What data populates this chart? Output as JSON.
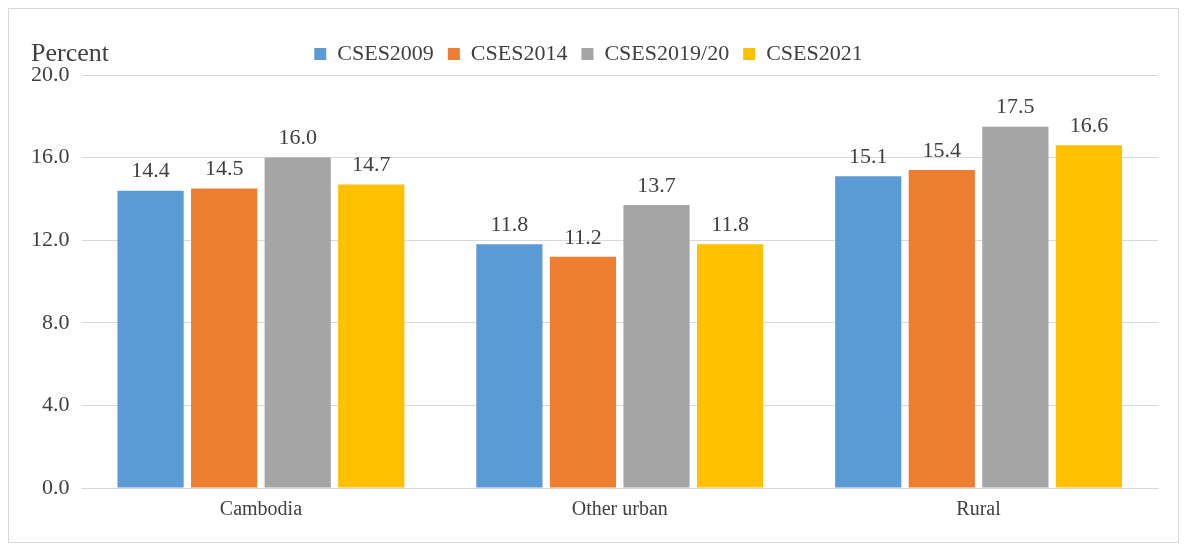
{
  "chart_data": {
    "type": "bar",
    "ylabel": "Percent",
    "categories": [
      "Cambodia",
      "Other urban",
      "Rural"
    ],
    "series": [
      {
        "name": "CSES2009",
        "color": "#5b9bd5",
        "values": [
          14.4,
          11.8,
          15.1
        ],
        "value_labels": [
          "14.4",
          "11.8",
          "15.1"
        ]
      },
      {
        "name": "CSES2014",
        "color": "#ed7d31",
        "values": [
          14.5,
          11.2,
          15.4
        ],
        "value_labels": [
          "14.5",
          "11.2",
          "15.4"
        ]
      },
      {
        "name": "CSES2019/20",
        "color": "#a5a5a5",
        "values": [
          16.0,
          13.7,
          17.5
        ],
        "value_labels": [
          "16.0",
          "13.7",
          "17.5"
        ]
      },
      {
        "name": "CSES2021",
        "color": "#ffc000",
        "values": [
          14.7,
          11.8,
          16.6
        ],
        "value_labels": [
          "14.7",
          "11.8",
          "16.6"
        ]
      }
    ],
    "ylim": [
      0,
      20
    ],
    "yticks": [
      {
        "value": 0,
        "label": "0.0"
      },
      {
        "value": 4,
        "label": "4.0"
      },
      {
        "value": 8,
        "label": "8.0"
      },
      {
        "value": 12,
        "label": "12.0"
      },
      {
        "value": 16,
        "label": "16.0"
      },
      {
        "value": 20,
        "label": "20.0"
      }
    ],
    "grid": "y",
    "legend": "top"
  }
}
